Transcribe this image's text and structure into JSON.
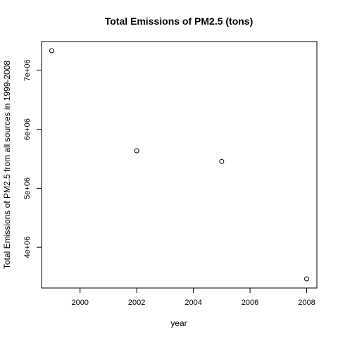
{
  "chart_data": {
    "type": "scatter",
    "title": "Total Emissions of PM2.5 (tons)",
    "xlabel": "year",
    "ylabel": "Total Emissions of PM2.5 from all sources in 1999-2008",
    "x": [
      1999,
      2002,
      2005,
      2008
    ],
    "y": [
      7332967,
      5635780,
      5454703,
      3464206
    ],
    "xlim": [
      1999,
      2008
    ],
    "ylim": [
      3464206,
      7332967
    ],
    "x_ticks": [
      2000,
      2002,
      2004,
      2006,
      2008
    ],
    "y_ticks": [
      4000000,
      5000000,
      6000000,
      7000000
    ],
    "y_tick_labels": [
      "4e+06",
      "5e+06",
      "6e+06",
      "7e+06"
    ],
    "grid": false,
    "marker": "open-circle",
    "colors": {
      "points": "#000000",
      "axes": "#000000"
    }
  }
}
